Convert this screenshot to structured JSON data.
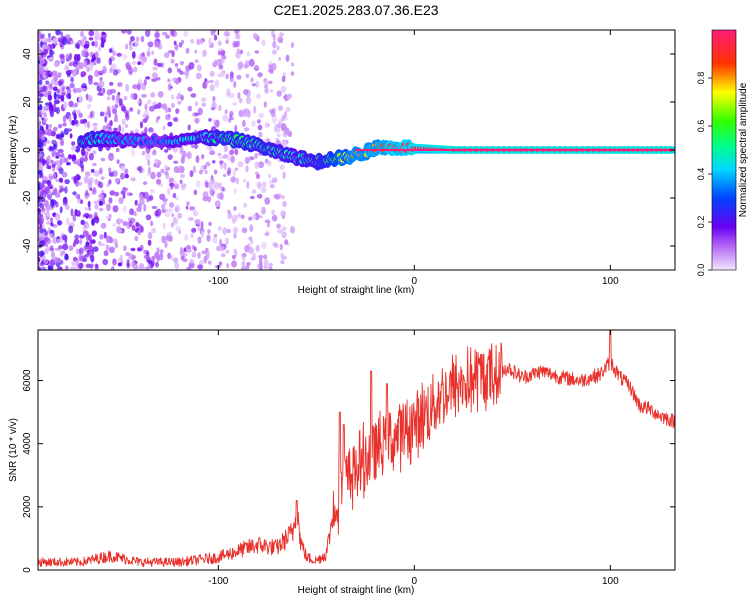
{
  "title": "C2E1.2025.283.07.36.E23",
  "chart_data": [
    {
      "type": "heatmap",
      "name": "spectrogram",
      "xlabel": "Height of straight line (km)",
      "ylabel": "Frequency (Hz)",
      "xlim": [
        -192,
        133
      ],
      "ylim": [
        -50,
        50
      ],
      "xticks": [
        -100,
        0,
        100
      ],
      "yticks": [
        -40,
        -20,
        0,
        20,
        40
      ],
      "colorbar": {
        "label": "Normalized spectral amplitude",
        "range": [
          0,
          1
        ],
        "ticks": [
          0.0,
          0.2,
          0.4,
          0.6,
          0.8
        ]
      },
      "ridge": [
        {
          "x": -170,
          "y": 4,
          "amp": 0.5
        },
        {
          "x": -160,
          "y": 5,
          "amp": 0.45
        },
        {
          "x": -148,
          "y": 4,
          "amp": 0.35
        },
        {
          "x": -130,
          "y": 4,
          "amp": 0.3
        },
        {
          "x": -110,
          "y": 5,
          "amp": 0.45
        },
        {
          "x": -100,
          "y": 5,
          "amp": 0.5
        },
        {
          "x": -90,
          "y": 4,
          "amp": 0.55
        },
        {
          "x": -80,
          "y": 2,
          "amp": 0.5
        },
        {
          "x": -70,
          "y": -1,
          "amp": 0.5
        },
        {
          "x": -60,
          "y": -3,
          "amp": 0.45
        },
        {
          "x": -50,
          "y": -5,
          "amp": 0.5
        },
        {
          "x": -45,
          "y": -4,
          "amp": 0.55
        },
        {
          "x": -35,
          "y": -3,
          "amp": 0.75
        },
        {
          "x": -25,
          "y": -1,
          "amp": 0.8
        },
        {
          "x": -20,
          "y": 1,
          "amp": 0.85
        },
        {
          "x": -10,
          "y": 1,
          "amp": 0.9
        },
        {
          "x": 0,
          "y": 1,
          "amp": 0.95
        },
        {
          "x": 20,
          "y": 0,
          "amp": 1.0
        },
        {
          "x": 60,
          "y": 0,
          "amp": 1.0
        },
        {
          "x": 100,
          "y": 0,
          "amp": 1.0
        },
        {
          "x": 133,
          "y": 0,
          "amp": 1.0
        }
      ]
    },
    {
      "type": "line",
      "name": "snr",
      "xlabel": "Height of straight line (km)",
      "ylabel": "SNR (10 * v/v)",
      "xlim": [
        -192,
        133
      ],
      "ylim": [
        0,
        7600
      ],
      "xticks": [
        -100,
        0,
        100
      ],
      "yticks": [
        0,
        2000,
        4000,
        6000
      ],
      "color": "#e8312b",
      "series": [
        {
          "name": "SNR",
          "x": [
            -192,
            -170,
            -155,
            -140,
            -120,
            -100,
            -90,
            -80,
            -70,
            -62,
            -60,
            -58,
            -55,
            -50,
            -45,
            -40,
            -35,
            -30,
            -25,
            -20,
            -15,
            -10,
            -5,
            0,
            5,
            10,
            20,
            30,
            40,
            48,
            55,
            65,
            75,
            85,
            95,
            100,
            105,
            110,
            115,
            120,
            125,
            133
          ],
          "y": [
            250,
            250,
            450,
            250,
            250,
            400,
            600,
            800,
            700,
            1200,
            2000,
            900,
            400,
            300,
            500,
            2200,
            2800,
            3200,
            3500,
            3800,
            4000,
            4200,
            4400,
            4600,
            4900,
            5300,
            5800,
            6000,
            6200,
            6400,
            6100,
            6300,
            6100,
            6000,
            6200,
            6600,
            6100,
            5800,
            5200,
            5100,
            4900,
            4700
          ]
        }
      ],
      "spikes": [
        {
          "x": -60,
          "y": 2200
        },
        {
          "x": -38,
          "y": 5000
        },
        {
          "x": -36,
          "y": 4600
        },
        {
          "x": -22,
          "y": 6300
        },
        {
          "x": -14,
          "y": 5900
        },
        {
          "x": 100,
          "y": 7600
        }
      ]
    }
  ]
}
